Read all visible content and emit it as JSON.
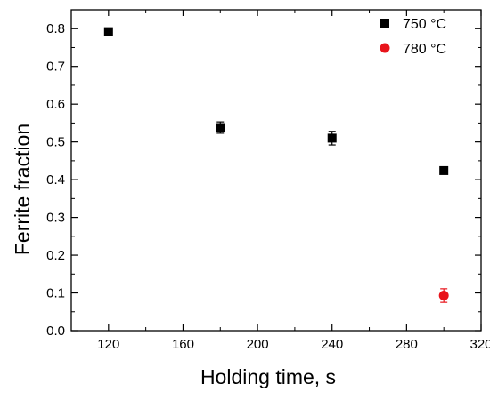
{
  "chart_data": {
    "type": "scatter",
    "xlabel": "Holding time, s",
    "ylabel": "Ferrite fraction",
    "xlim": [
      100,
      320
    ],
    "ylim": [
      0,
      0.85
    ],
    "xticks": [
      120,
      160,
      200,
      240,
      280,
      320
    ],
    "yticks": [
      0.0,
      0.1,
      0.2,
      0.3,
      0.4,
      0.5,
      0.6,
      0.7,
      0.8
    ],
    "xtick_labels": [
      "120",
      "160",
      "200",
      "240",
      "280",
      "320"
    ],
    "ytick_labels": [
      "0.0",
      "0.1",
      "0.2",
      "0.3",
      "0.4",
      "0.5",
      "0.6",
      "0.7",
      "0.8"
    ],
    "legend_position": "top-right",
    "grid": false,
    "series": [
      {
        "name": "750 °C",
        "marker": "square",
        "color": "#000000",
        "points": [
          {
            "x": 120,
            "y": 0.792,
            "err": 0.0
          },
          {
            "x": 180,
            "y": 0.538,
            "err": 0.015
          },
          {
            "x": 240,
            "y": 0.51,
            "err": 0.018
          },
          {
            "x": 300,
            "y": 0.424,
            "err": 0.0
          }
        ]
      },
      {
        "name": "780 °C",
        "marker": "circle",
        "color": "#e8141b",
        "points": [
          {
            "x": 300,
            "y": 0.093,
            "err": 0.018
          }
        ]
      }
    ]
  }
}
